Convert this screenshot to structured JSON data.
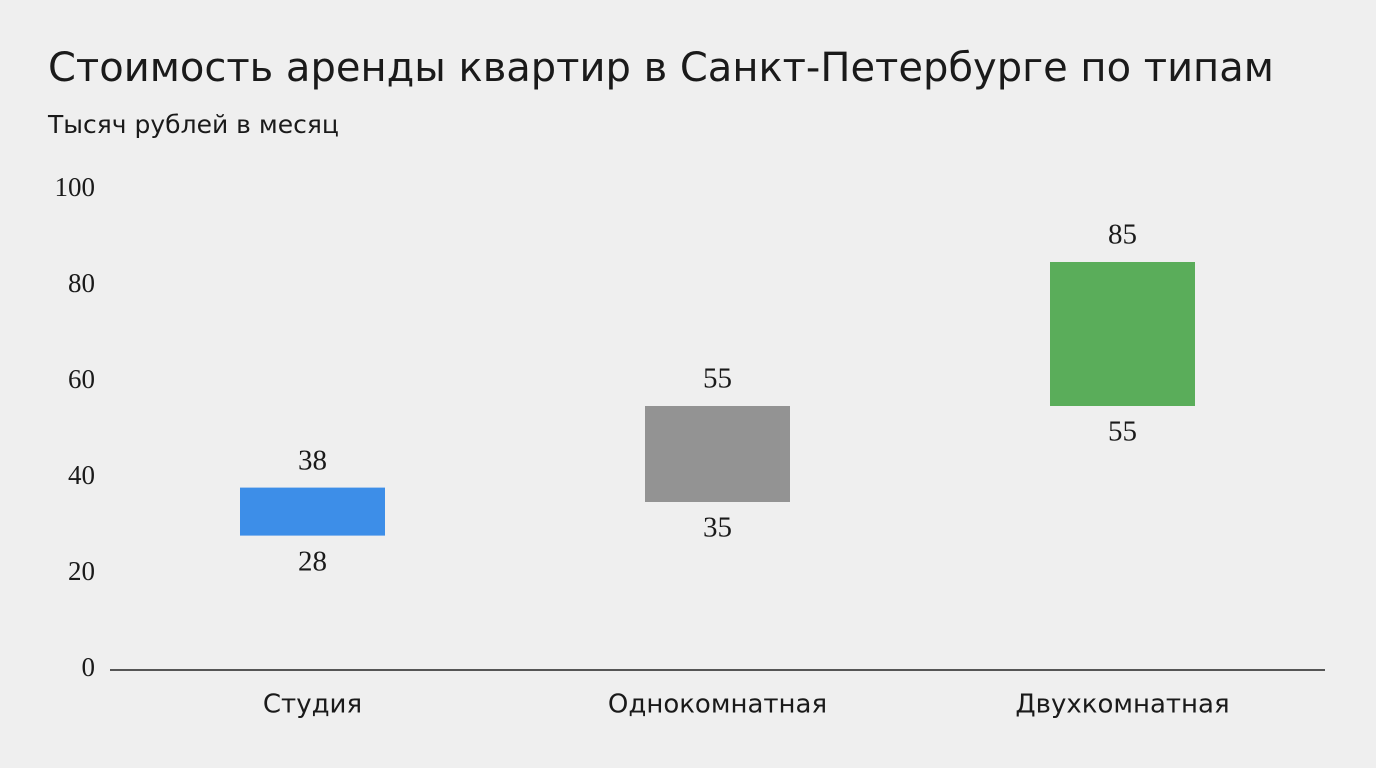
{
  "chart_data": {
    "type": "range_bar",
    "title": "Стоимость аренды квартир в Санкт-Петербурге по типам",
    "subtitle": "Тысяч рублей в месяц",
    "categories": [
      "Студия",
      "Однокомнатная",
      "Двухкомнатная"
    ],
    "low": [
      28,
      35,
      55
    ],
    "high": [
      38,
      55,
      85
    ],
    "colors": [
      "#3d8ee8",
      "#939393",
      "#5aad5a"
    ],
    "ylim": [
      0,
      100
    ],
    "yticks": [
      0,
      20,
      40,
      60,
      80,
      100
    ],
    "grid": false
  }
}
